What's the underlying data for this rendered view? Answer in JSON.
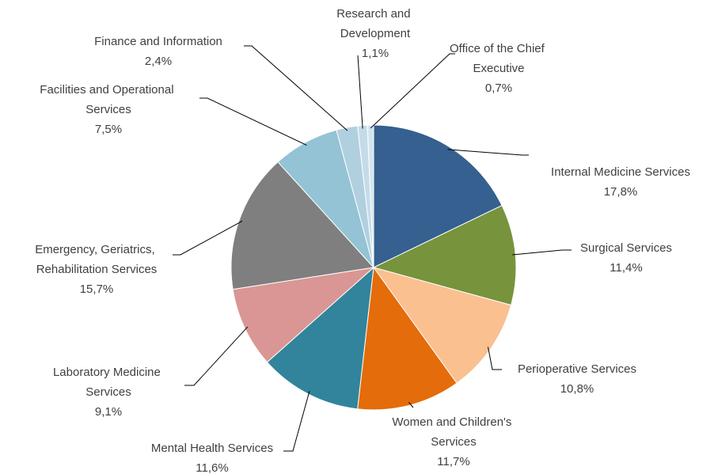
{
  "chart_data": {
    "type": "pie",
    "categories": [
      "Internal Medicine Services",
      "Surgical Services",
      "Perioperative Services",
      "Women and Children's Services",
      "Mental Health Services",
      "Laboratory Medicine Services",
      "Emergency, Geriatrics, Rehabilitation Services",
      "Facilities and Operational Services",
      "Finance and Information",
      "Research and Development",
      "Office of the Chief Executive"
    ],
    "values": [
      17.8,
      11.4,
      10.8,
      11.7,
      11.6,
      9.1,
      15.7,
      7.5,
      2.4,
      1.1,
      0.7
    ],
    "value_labels": [
      "17,8%",
      "11,4%",
      "10,8%",
      "11,7%",
      "11,6%",
      "9,1%",
      "15,7%",
      "7,5%",
      "2,4%",
      "1,1%",
      "0,7%"
    ],
    "colors": [
      "#35608f",
      "#77933c",
      "#fac090",
      "#e46c0a",
      "#31849b",
      "#d99694",
      "#7f7f7f",
      "#93c3d5",
      "#b0d0e0",
      "#c5dce8",
      "#d3e5ef"
    ]
  }
}
